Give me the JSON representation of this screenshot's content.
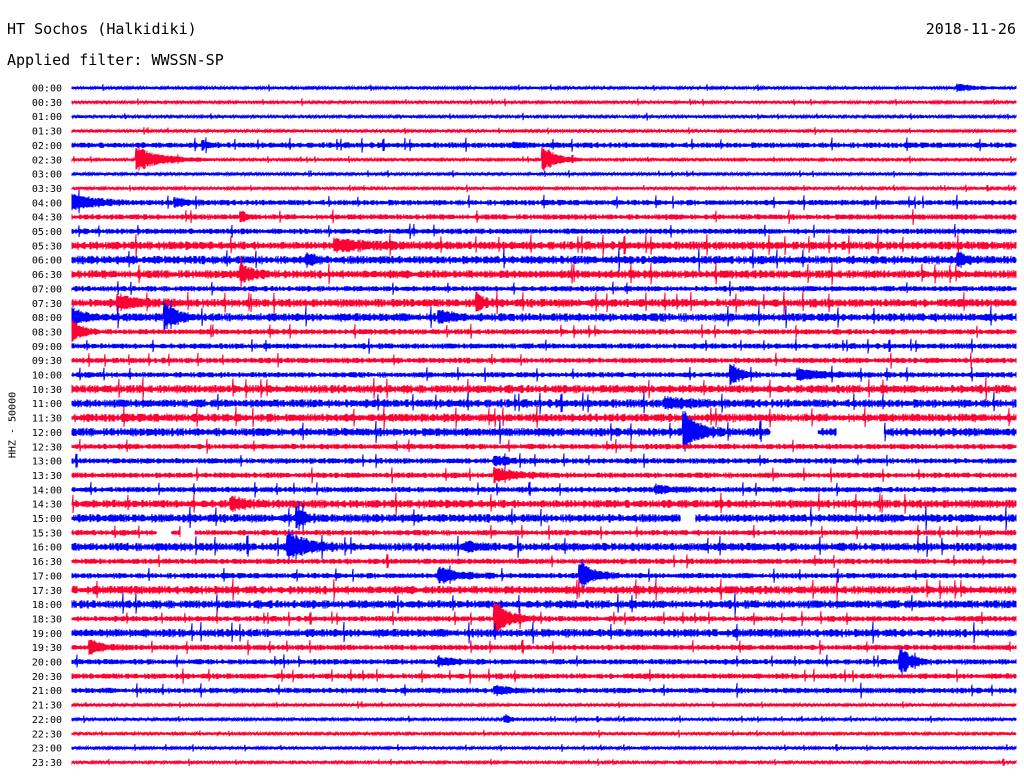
{
  "header": {
    "station": "HT Sochos (Halkidiki)",
    "date": "2018-11-26",
    "filter": "Applied filter: WWSSN-SP"
  },
  "chart_data": {
    "type": "line",
    "title": "HT Sochos (Halkidiki)",
    "ylabel": "HHZ - 50000",
    "xlabel": "",
    "grid": false,
    "colors": [
      "#0000ff",
      "#ff0033"
    ],
    "rows": [
      "00:00",
      "00:30",
      "01:00",
      "01:30",
      "02:00",
      "02:30",
      "03:00",
      "03:30",
      "04:00",
      "04:30",
      "05:00",
      "05:30",
      "06:00",
      "06:30",
      "07:00",
      "07:30",
      "08:00",
      "08:30",
      "09:00",
      "09:30",
      "10:00",
      "10:30",
      "11:00",
      "11:30",
      "12:00",
      "12:30",
      "13:00",
      "13:30",
      "14:00",
      "14:30",
      "15:00",
      "15:30",
      "16:00",
      "16:30",
      "17:00",
      "17:30",
      "18:00",
      "18:30",
      "19:00",
      "19:30",
      "20:00",
      "20:30",
      "21:00",
      "21:30",
      "22:00",
      "22:30",
      "23:00",
      "23:30"
    ],
    "noise_level": [
      1,
      1,
      1,
      1,
      2,
      1,
      1,
      1,
      2,
      2,
      2,
      3,
      3,
      3,
      2,
      3,
      3,
      2,
      2,
      2,
      2,
      3,
      3,
      3,
      3,
      2,
      2,
      2,
      2,
      3,
      3,
      2,
      3,
      2,
      2,
      3,
      3,
      2,
      3,
      2,
      2,
      2,
      2,
      1,
      1,
      1,
      1,
      1
    ],
    "events": [
      {
        "row": 0,
        "pos": 0.94,
        "amp": 4,
        "width": 0.04
      },
      {
        "row": 4,
        "pos": 0.14,
        "amp": 3,
        "width": 0.02
      },
      {
        "row": 4,
        "pos": 0.47,
        "amp": 2,
        "width": 0.03
      },
      {
        "row": 5,
        "pos": 0.07,
        "amp": 12,
        "width": 0.08
      },
      {
        "row": 5,
        "pos": 0.5,
        "amp": 14,
        "width": 0.04
      },
      {
        "row": 8,
        "pos": 0.0,
        "amp": 10,
        "width": 0.06
      },
      {
        "row": 8,
        "pos": 0.11,
        "amp": 4,
        "width": 0.04
      },
      {
        "row": 9,
        "pos": 0.18,
        "amp": 5,
        "width": 0.02
      },
      {
        "row": 11,
        "pos": 0.28,
        "amp": 5,
        "width": 0.1
      },
      {
        "row": 12,
        "pos": 0.25,
        "amp": 6,
        "width": 0.02
      },
      {
        "row": 12,
        "pos": 0.94,
        "amp": 7,
        "width": 0.02
      },
      {
        "row": 13,
        "pos": 0.18,
        "amp": 8,
        "width": 0.04
      },
      {
        "row": 15,
        "pos": 0.05,
        "amp": 6,
        "width": 0.06
      },
      {
        "row": 15,
        "pos": 0.43,
        "amp": 8,
        "width": 0.02
      },
      {
        "row": 16,
        "pos": 0.0,
        "amp": 9,
        "width": 0.03
      },
      {
        "row": 16,
        "pos": 0.1,
        "amp": 14,
        "width": 0.03
      },
      {
        "row": 16,
        "pos": 0.39,
        "amp": 5,
        "width": 0.04
      },
      {
        "row": 17,
        "pos": 0.0,
        "amp": 12,
        "width": 0.03
      },
      {
        "row": 20,
        "pos": 0.7,
        "amp": 10,
        "width": 0.03
      },
      {
        "row": 20,
        "pos": 0.77,
        "amp": 5,
        "width": 0.08
      },
      {
        "row": 22,
        "pos": 0.63,
        "amp": 4,
        "width": 0.08
      },
      {
        "row": 24,
        "pos": 0.65,
        "amp": 18,
        "width": 0.04
      },
      {
        "row": 26,
        "pos": 0.45,
        "amp": 4,
        "width": 0.04
      },
      {
        "row": 27,
        "pos": 0.45,
        "amp": 7,
        "width": 0.06
      },
      {
        "row": 28,
        "pos": 0.62,
        "amp": 4,
        "width": 0.04
      },
      {
        "row": 29,
        "pos": 0.17,
        "amp": 6,
        "width": 0.04
      },
      {
        "row": 30,
        "pos": 0.24,
        "amp": 9,
        "width": 0.02
      },
      {
        "row": 32,
        "pos": 0.23,
        "amp": 16,
        "width": 0.05
      },
      {
        "row": 32,
        "pos": 0.42,
        "amp": 4,
        "width": 0.03
      },
      {
        "row": 34,
        "pos": 0.39,
        "amp": 8,
        "width": 0.06
      },
      {
        "row": 34,
        "pos": 0.54,
        "amp": 14,
        "width": 0.04
      },
      {
        "row": 37,
        "pos": 0.45,
        "amp": 16,
        "width": 0.04
      },
      {
        "row": 39,
        "pos": 0.02,
        "amp": 6,
        "width": 0.04
      },
      {
        "row": 40,
        "pos": 0.88,
        "amp": 13,
        "width": 0.03
      },
      {
        "row": 40,
        "pos": 0.39,
        "amp": 4,
        "width": 0.05
      },
      {
        "row": 42,
        "pos": 0.45,
        "amp": 4,
        "width": 0.04
      },
      {
        "row": 44,
        "pos": 0.46,
        "amp": 4,
        "width": 0.02
      }
    ],
    "gaps": [
      {
        "row": 24,
        "start": 0.74,
        "end": 0.79
      },
      {
        "row": 24,
        "start": 0.81,
        "end": 0.86
      },
      {
        "row": 30,
        "start": 0.645,
        "end": 0.66
      },
      {
        "row": 31,
        "start": 0.09,
        "end": 0.105
      },
      {
        "row": 31,
        "start": 0.115,
        "end": 0.13
      }
    ]
  }
}
